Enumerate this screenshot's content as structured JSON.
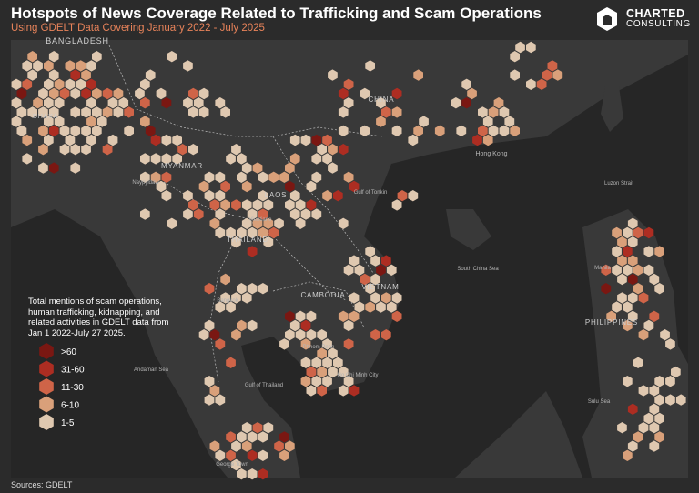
{
  "header": {
    "title": "Hotspots of News Coverage Related to Trafficking and Scam Operations",
    "subtitle": "Using GDELT Data Covering January 2022 - July 2025"
  },
  "logo": {
    "name": "CHARTED",
    "tagline": "CONSULTING"
  },
  "legend": {
    "title": "Total mentions of scam operations, human trafficking, kidnapping, and related activities in GDELT data from Jan 1 2022-July 27 2025.",
    "items": [
      {
        "label": ">60",
        "color": "#7a1712"
      },
      {
        "label": "31-60",
        "color": "#ad2d22"
      },
      {
        "label": "11-30",
        "color": "#cf6448"
      },
      {
        "label": "6-10",
        "color": "#d9a07a"
      },
      {
        "label": "1-5",
        "color": "#dfc8b0"
      }
    ]
  },
  "places": [
    {
      "label": "BANGLADESH"
    },
    {
      "label": "DHAKA"
    },
    {
      "label": "MYANMAR"
    },
    {
      "label": "Naypyidaw"
    },
    {
      "label": "LAOS"
    },
    {
      "label": "Vientiane"
    },
    {
      "label": "THAILAND"
    },
    {
      "label": "Bangkok"
    },
    {
      "label": "CAMBODIA"
    },
    {
      "label": "Phnom Penh"
    },
    {
      "label": "VIETNAM"
    },
    {
      "label": "Ho Chi Minh City"
    },
    {
      "label": "CHINA"
    },
    {
      "label": "Hong Kong"
    },
    {
      "label": "Gulf of Tonkin"
    },
    {
      "label": "South China Sea"
    },
    {
      "label": "Luzon Strait"
    },
    {
      "label": "PHILIPPINES"
    },
    {
      "label": "Manila"
    },
    {
      "label": "Andaman Sea"
    },
    {
      "label": "Gulf of Thailand"
    },
    {
      "label": "Sulu Sea"
    },
    {
      "label": "George Town"
    }
  ],
  "source": "Sources:  GDELT"
}
